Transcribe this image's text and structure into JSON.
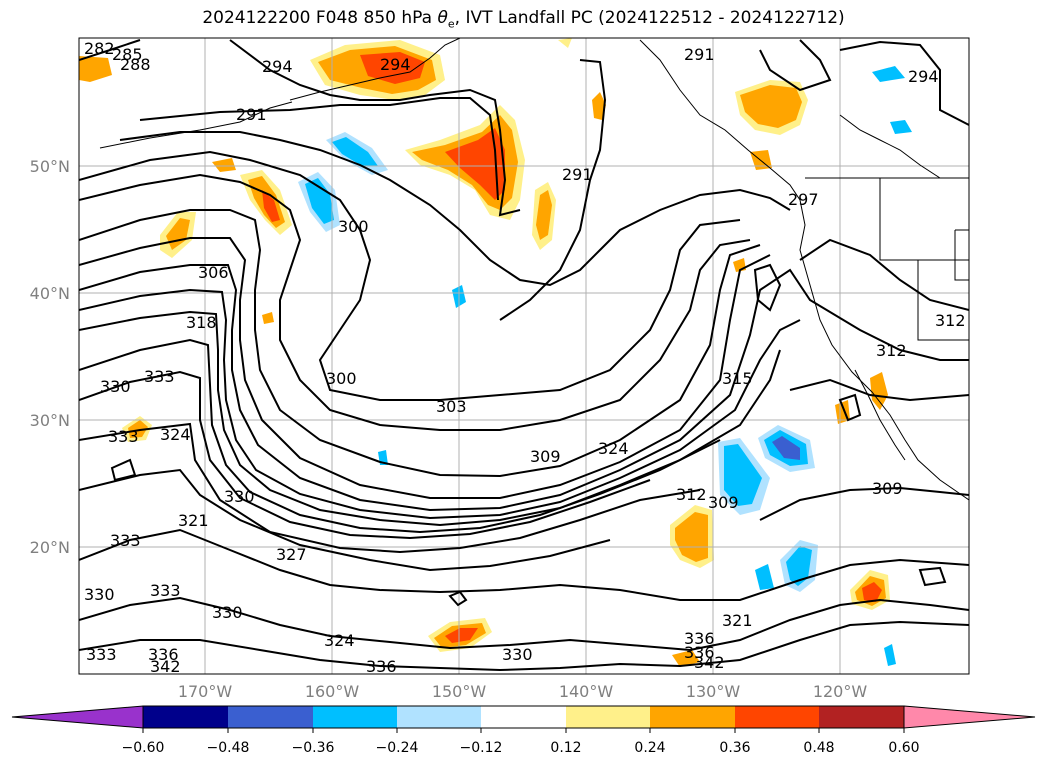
{
  "title_main": "2024122200 F048 850 hPa ",
  "title_sym": "θ",
  "title_sub": "e",
  "title_rest": ", IVT Landfall PC (2024122512 - 2024122712)",
  "lon_labels": [
    "170°W",
    "160°W",
    "150°W",
    "140°W",
    "130°W",
    "120°W"
  ],
  "lat_labels": [
    "50°N",
    "40°N",
    "30°N",
    "20°N"
  ],
  "contour_labels": [
    {
      "id": "c282",
      "text": "282"
    },
    {
      "id": "c285",
      "text": "285"
    },
    {
      "id": "c288",
      "text": "288"
    },
    {
      "id": "c294a",
      "text": "294"
    },
    {
      "id": "c294b",
      "text": "294"
    },
    {
      "id": "c294c",
      "text": "294"
    },
    {
      "id": "c291a",
      "text": "291"
    },
    {
      "id": "c291b",
      "text": "291"
    },
    {
      "id": "c291c",
      "text": "291"
    },
    {
      "id": "c297",
      "text": "297"
    },
    {
      "id": "c300a",
      "text": "300"
    },
    {
      "id": "c300b",
      "text": "300"
    },
    {
      "id": "c306",
      "text": "306"
    },
    {
      "id": "c318",
      "text": "318"
    },
    {
      "id": "c330a",
      "text": "330"
    },
    {
      "id": "c333a",
      "text": "333"
    },
    {
      "id": "c333b",
      "text": "333"
    },
    {
      "id": "c324a",
      "text": "324"
    },
    {
      "id": "c303",
      "text": "303"
    },
    {
      "id": "c309a",
      "text": "309"
    },
    {
      "id": "c324b",
      "text": "324"
    },
    {
      "id": "c315",
      "text": "315"
    },
    {
      "id": "c312a",
      "text": "312"
    },
    {
      "id": "c312b",
      "text": "312"
    },
    {
      "id": "c312c",
      "text": "312"
    },
    {
      "id": "c309b",
      "text": "309"
    },
    {
      "id": "c309c",
      "text": "309"
    },
    {
      "id": "c330b",
      "text": "330"
    },
    {
      "id": "c321a",
      "text": "321"
    },
    {
      "id": "c333c",
      "text": "333"
    },
    {
      "id": "c327",
      "text": "327"
    },
    {
      "id": "c330c",
      "text": "330"
    },
    {
      "id": "c333d",
      "text": "333"
    },
    {
      "id": "c330d",
      "text": "330"
    },
    {
      "id": "c324c",
      "text": "324"
    },
    {
      "id": "c336a",
      "text": "336"
    },
    {
      "id": "c330e",
      "text": "330"
    },
    {
      "id": "c333e",
      "text": "333"
    },
    {
      "id": "c336b",
      "text": "336"
    },
    {
      "id": "c342a",
      "text": "342"
    },
    {
      "id": "c321b",
      "text": "321"
    },
    {
      "id": "c336c",
      "text": "336"
    },
    {
      "id": "c336d",
      "text": "336"
    },
    {
      "id": "c342b",
      "text": "342"
    }
  ],
  "colorbar": {
    "ticks": [
      "−0.60",
      "−0.48",
      "−0.36",
      "−0.24",
      "−0.12",
      "0.12",
      "0.24",
      "0.36",
      "0.48",
      "0.60"
    ],
    "colors": {
      "under": "#9932cc",
      "over": "#ff88aa",
      "bins": [
        "#00008b",
        "#3a5fd0",
        "#00bfff",
        "#b0e2ff",
        "#ffffff",
        "#fff08a",
        "#ffa500",
        "#ff4500",
        "#b22222"
      ]
    }
  },
  "fill_colors": {
    "pos1": "#fff08a",
    "pos2": "#ffa500",
    "pos3": "#ff4500",
    "neg1": "#b0e2ff",
    "neg2": "#00bfff",
    "neg3": "#3a5fd0"
  },
  "line_color": "#000000",
  "grid_color": "#b0b0b0"
}
